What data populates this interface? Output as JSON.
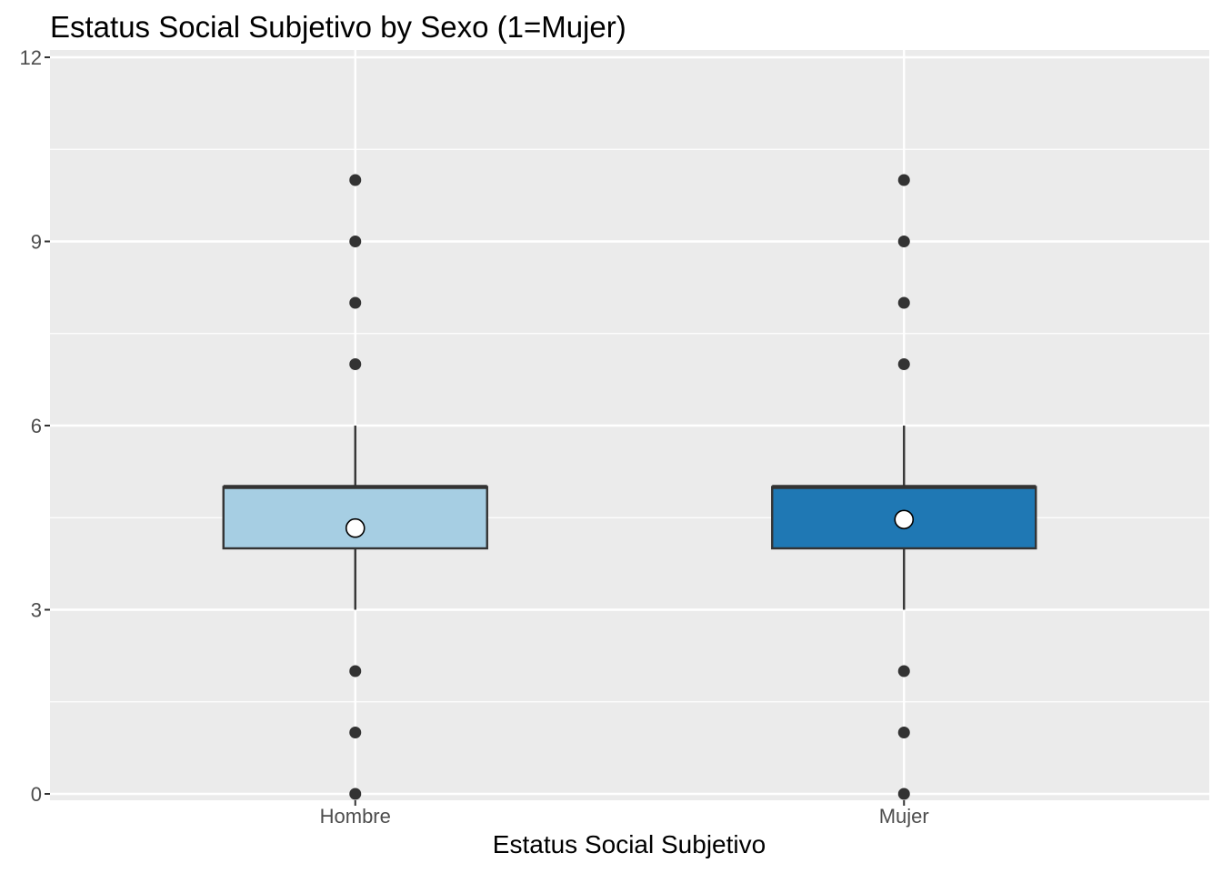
{
  "chart_data": {
    "type": "boxplot",
    "title": "Estatus Social Subjetivo by Sexo (1=Mujer)",
    "xlabel": "Estatus Social Subjetivo",
    "ylabel": "",
    "ylim": [
      0,
      12
    ],
    "yticks": [
      0,
      3,
      6,
      9,
      12
    ],
    "y_minor_ticks": [
      1.5,
      4.5,
      7.5,
      10.5
    ],
    "grid": true,
    "legend": "none",
    "categories": [
      "Hombre",
      "Mujer"
    ],
    "boxes": [
      {
        "category": "Hombre",
        "color": "#a6cee3",
        "whisker_low": 3,
        "q1": 4,
        "median": 5,
        "q3": 5,
        "whisker_high": 6,
        "mean": 4.33,
        "outliers": [
          0,
          1,
          2,
          7,
          8,
          9,
          10
        ]
      },
      {
        "category": "Mujer",
        "color": "#1f78b4",
        "whisker_low": 3,
        "q1": 4,
        "median": 5,
        "q3": 5,
        "whisker_high": 6,
        "mean": 4.47,
        "outliers": [
          0,
          1,
          2,
          7,
          8,
          9,
          10
        ]
      }
    ],
    "panel_color": "#ebebeb",
    "grid_color": "#ffffff",
    "box_line_color": "#333333",
    "outlier_color": "#333333",
    "mean_marker_fill": "#ffffff"
  }
}
